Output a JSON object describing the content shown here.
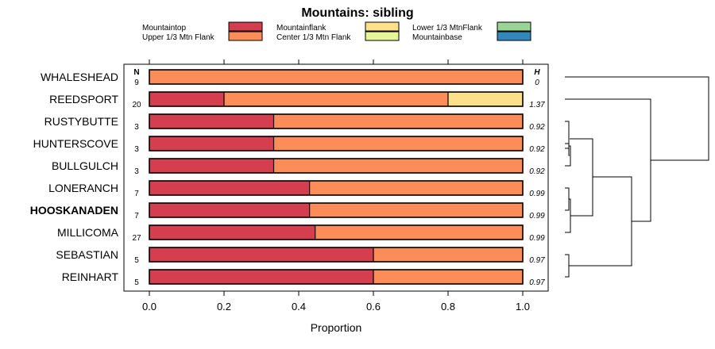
{
  "chart_data": {
    "type": "bar",
    "stacked": true,
    "orientation": "horizontal",
    "title": "Mountains: sibling",
    "xlabel": "Proportion",
    "ylabel": "",
    "xlim": [
      0,
      1
    ],
    "xticks": [
      "0.0",
      "0.2",
      "0.4",
      "0.6",
      "0.8",
      "1.0"
    ],
    "n_header": "N",
    "h_header": "H",
    "highlight_category": "HOOSKANADEN",
    "legend": [
      {
        "name": "Mountaintop",
        "color": "#d53e4f"
      },
      {
        "name": "Upper 1/3 Mtn Flank",
        "color": "#fc8d59"
      },
      {
        "name": "Mountainflank",
        "color": "#fee08b"
      },
      {
        "name": "Center 1/3 Mtn Flank",
        "color": "#e6f598"
      },
      {
        "name": "Lower 1/3 MtnFlank",
        "color": "#99d594"
      },
      {
        "name": "Mountainbase",
        "color": "#3288bd"
      }
    ],
    "categories": [
      "WHALESHEAD",
      "REEDSPORT",
      "RUSTYBUTTE",
      "HUNTERSCOVE",
      "BULLGULCH",
      "LONERANCH",
      "HOOSKANADEN",
      "MILLICOMA",
      "SEBASTIAN",
      "REINHART"
    ],
    "n": [
      "9",
      "20",
      "3",
      "3",
      "3",
      "7",
      "7",
      "27",
      "5",
      "5"
    ],
    "h": [
      "0",
      "1.37",
      "0.92",
      "0.92",
      "0.92",
      "0.99",
      "0.99",
      "0.99",
      "0.97",
      "0.97"
    ],
    "series": [
      {
        "name": "Mountaintop",
        "color": "#d53e4f",
        "values": [
          0,
          0.2,
          0.333,
          0.333,
          0.333,
          0.429,
          0.429,
          0.444,
          0.6,
          0.6
        ]
      },
      {
        "name": "Upper 1/3 Mtn Flank",
        "color": "#fc8d59",
        "values": [
          1.0,
          0.6,
          0.667,
          0.667,
          0.667,
          0.571,
          0.571,
          0.556,
          0.4,
          0.4
        ]
      },
      {
        "name": "Mountainflank",
        "color": "#fee08b",
        "values": [
          0,
          0.2,
          0,
          0,
          0,
          0,
          0,
          0,
          0,
          0
        ]
      }
    ]
  }
}
